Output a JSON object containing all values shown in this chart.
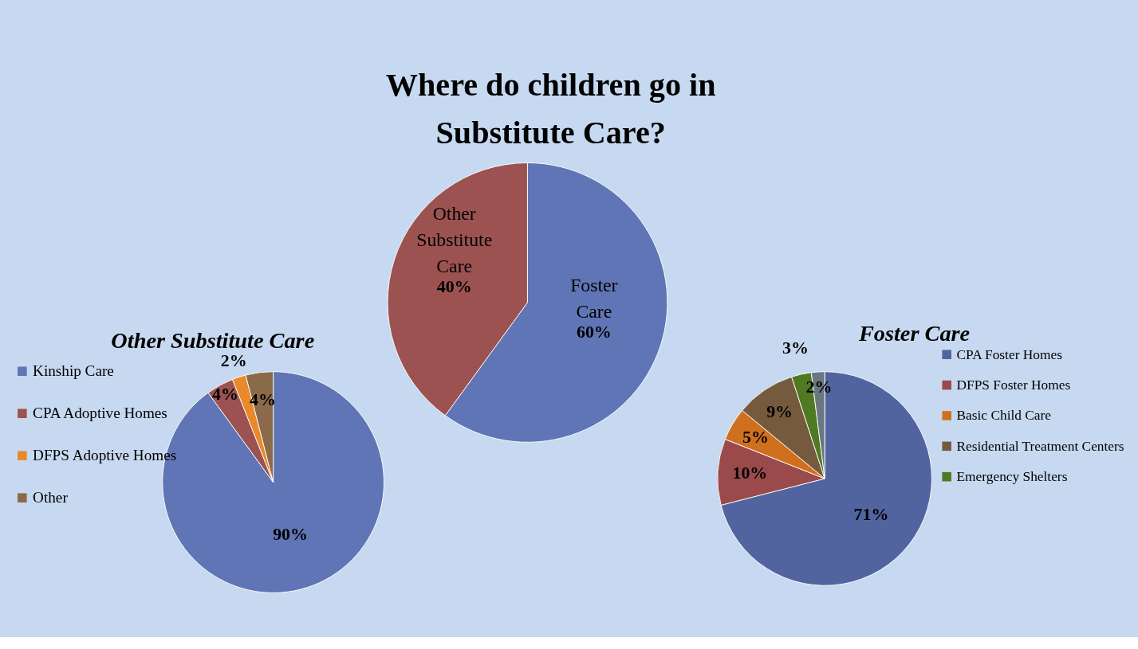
{
  "chart_data": [
    {
      "type": "pie",
      "title": "Where do children go in Substitute Care?",
      "categories": [
        "Foster Care",
        "Other Substitute Care"
      ],
      "values": [
        60,
        40
      ],
      "colors": [
        "#6075b5",
        "#9b5251"
      ],
      "value_labels": [
        "60%",
        "40%"
      ],
      "legend": false
    },
    {
      "type": "pie",
      "title": "Other Substitute Care",
      "categories": [
        "Kinship Care",
        "CPA Adoptive Homes",
        "DFPS Adoptive Homes",
        "Other"
      ],
      "values": [
        90,
        4,
        2,
        4
      ],
      "colors": [
        "#6075b5",
        "#9b5251",
        "#e8892a",
        "#8b6a4a"
      ],
      "value_labels": [
        "90%",
        "4%",
        "2%",
        "4%"
      ],
      "legend": "left"
    },
    {
      "type": "pie",
      "title": "Foster Care",
      "categories": [
        "CPA Foster Homes",
        "DFPS Foster Homes",
        "Basic Child Care",
        "Residential Treatment Centers",
        "Emergency Shelters",
        null
      ],
      "values": [
        71,
        10,
        5,
        9,
        3,
        2
      ],
      "colors": [
        "#5264a0",
        "#9a4a4a",
        "#d0701f",
        "#765a3e",
        "#4f7a22",
        "#6b7780"
      ],
      "value_labels": [
        "71%",
        "10%",
        "5%",
        "9%",
        "3%",
        "2%"
      ],
      "legend": "right"
    }
  ]
}
